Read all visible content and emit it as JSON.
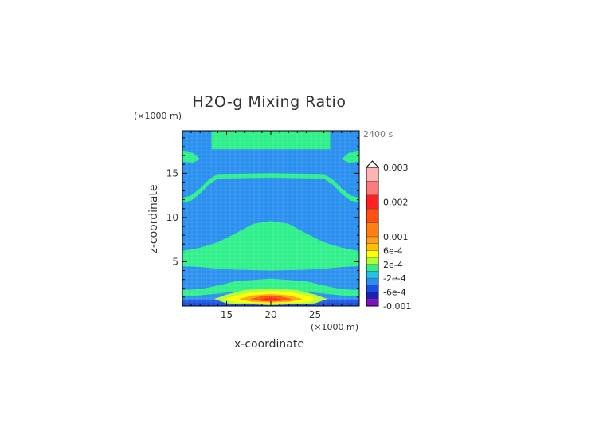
{
  "chart_data": {
    "type": "heatmap",
    "title": "H2O-g Mixing Ratio",
    "xlabel": "x-coordinate",
    "ylabel": "z-coordinate",
    "x_unit": "(×1000 m)",
    "y_unit": "(×1000 m)",
    "time_label": "2400 s",
    "xlim": [
      10,
      30
    ],
    "ylim": [
      0,
      19.8
    ],
    "x_ticks": [
      15,
      20,
      25
    ],
    "y_ticks": [
      5,
      10,
      15
    ],
    "colorbar": {
      "labels": [
        "0.003",
        "0.002",
        "0.001",
        "6e-4",
        "2e-4",
        "-2e-4",
        "-6e-4",
        "-0.001"
      ],
      "label_levels": [
        0.003,
        0.002,
        0.001,
        0.0006,
        0.0002,
        -0.0002,
        -0.0006,
        -0.001
      ],
      "extend_top": true,
      "segments": [
        {
          "from": 0.0026,
          "to": 0.003,
          "color": "#ffb3b3"
        },
        {
          "from": 0.0022,
          "to": 0.0026,
          "color": "#ff7b7b"
        },
        {
          "from": 0.0018,
          "to": 0.0022,
          "color": "#ff2020"
        },
        {
          "from": 0.0014,
          "to": 0.0018,
          "color": "#ff5010"
        },
        {
          "from": 0.001,
          "to": 0.0014,
          "color": "#ff8010"
        },
        {
          "from": 0.0008,
          "to": 0.001,
          "color": "#ffa010"
        },
        {
          "from": 0.0006,
          "to": 0.0008,
          "color": "#ffc000"
        },
        {
          "from": 0.0004,
          "to": 0.0006,
          "color": "#ffff00"
        },
        {
          "from": 0.0002,
          "to": 0.0004,
          "color": "#b0ff30"
        },
        {
          "from": 0.0,
          "to": 0.0002,
          "color": "#2ef08a"
        },
        {
          "from": -0.0002,
          "to": 0.0,
          "color": "#1ec4e6"
        },
        {
          "from": -0.0004,
          "to": -0.0002,
          "color": "#2a90f0"
        },
        {
          "from": -0.0006,
          "to": -0.0004,
          "color": "#1a50e0"
        },
        {
          "from": -0.0008,
          "to": -0.0006,
          "color": "#2020b0"
        },
        {
          "from": -0.001,
          "to": -0.0008,
          "color": "#8010c0"
        }
      ]
    },
    "field_regions": [
      {
        "name": "background",
        "level": -0.0001,
        "color": "#2a90f0"
      },
      {
        "name": "upper-band",
        "level": 0.0001,
        "color": "#2ef08a",
        "polygon": [
          [
            13.3,
            19.8
          ],
          [
            26.7,
            19.8
          ],
          [
            26.7,
            17.7
          ],
          [
            13.3,
            17.7
          ]
        ]
      },
      {
        "name": "upper-left-edge",
        "level": 0.0001,
        "color": "#2ef08a",
        "polygon": [
          [
            10,
            17.5
          ],
          [
            11.2,
            17.3
          ],
          [
            12,
            16.6
          ],
          [
            11.2,
            16.2
          ],
          [
            10,
            16.3
          ]
        ]
      },
      {
        "name": "upper-right-edge",
        "level": 0.0001,
        "color": "#2ef08a",
        "polygon": [
          [
            30,
            17.5
          ],
          [
            28.8,
            17.3
          ],
          [
            28,
            16.6
          ],
          [
            28.8,
            16.2
          ],
          [
            30,
            16.3
          ]
        ]
      },
      {
        "name": "tropopause-arc",
        "level": 0.0001,
        "color": "#2ef08a",
        "polygon": [
          [
            10,
            12.2
          ],
          [
            11,
            12.5
          ],
          [
            12,
            13.3
          ],
          [
            13,
            14.3
          ],
          [
            14,
            14.9
          ],
          [
            20,
            15.0
          ],
          [
            26,
            14.9
          ],
          [
            27,
            14.3
          ],
          [
            28,
            13.3
          ],
          [
            29,
            12.5
          ],
          [
            30,
            12.2
          ],
          [
            30,
            11.7
          ],
          [
            29,
            11.9
          ],
          [
            28,
            12.7
          ],
          [
            27,
            13.7
          ],
          [
            26,
            14.4
          ],
          [
            20,
            14.5
          ],
          [
            14,
            14.4
          ],
          [
            13,
            13.7
          ],
          [
            12,
            12.7
          ],
          [
            11,
            11.9
          ],
          [
            10,
            11.7
          ]
        ]
      },
      {
        "name": "middle-dome",
        "level": 0.0001,
        "color": "#2ef08a",
        "polygon": [
          [
            10,
            6.2
          ],
          [
            12,
            6.6
          ],
          [
            14,
            7.2
          ],
          [
            16,
            8.2
          ],
          [
            18,
            9.3
          ],
          [
            20,
            9.6
          ],
          [
            22,
            9.3
          ],
          [
            24,
            8.2
          ],
          [
            26,
            7.2
          ],
          [
            28,
            6.6
          ],
          [
            30,
            6.2
          ],
          [
            30,
            4.5
          ],
          [
            28,
            4.4
          ],
          [
            26,
            4.2
          ],
          [
            24,
            4.1
          ],
          [
            20,
            4.0
          ],
          [
            16,
            4.1
          ],
          [
            14,
            4.2
          ],
          [
            12,
            4.4
          ],
          [
            10,
            4.5
          ]
        ]
      },
      {
        "name": "near-surface-band",
        "level": 0.0001,
        "color": "#2ef08a",
        "polygon": [
          [
            10,
            1.8
          ],
          [
            12,
            1.9
          ],
          [
            14,
            2.3
          ],
          [
            16,
            2.8
          ],
          [
            20,
            3.1
          ],
          [
            24,
            2.8
          ],
          [
            26,
            2.3
          ],
          [
            28,
            1.9
          ],
          [
            30,
            1.8
          ],
          [
            30,
            1.0
          ],
          [
            10,
            1.0
          ]
        ]
      },
      {
        "name": "surface-layer",
        "level": -0.0003,
        "color": "#2a90f0",
        "polygon": [
          [
            10,
            1.1
          ],
          [
            12,
            1.2
          ],
          [
            14,
            1.4
          ],
          [
            16,
            1.6
          ],
          [
            20,
            1.7
          ],
          [
            24,
            1.6
          ],
          [
            26,
            1.4
          ],
          [
            28,
            1.2
          ],
          [
            30,
            1.1
          ],
          [
            30,
            0
          ],
          [
            10,
            0
          ]
        ]
      },
      {
        "name": "surface-deep-blue",
        "level": -0.0005,
        "color": "#1a50e0",
        "polygon": [
          [
            10,
            0.6
          ],
          [
            30,
            0.6
          ],
          [
            30,
            0
          ],
          [
            10,
            0
          ]
        ]
      },
      {
        "name": "anomaly-green",
        "level": 0.0003,
        "color": "#b0ff30",
        "polygon": [
          [
            13.6,
            0.8
          ],
          [
            15,
            1.3
          ],
          [
            17,
            1.8
          ],
          [
            20,
            2.0
          ],
          [
            23,
            1.8
          ],
          [
            25,
            1.3
          ],
          [
            26.4,
            0.8
          ],
          [
            25,
            0.3
          ],
          [
            20,
            0.1
          ],
          [
            15,
            0.3
          ]
        ]
      },
      {
        "name": "anomaly-yellow",
        "level": 0.0005,
        "color": "#ffff00",
        "polygon": [
          [
            14.6,
            0.8
          ],
          [
            16,
            1.2
          ],
          [
            18,
            1.6
          ],
          [
            20,
            1.7
          ],
          [
            22,
            1.6
          ],
          [
            24,
            1.2
          ],
          [
            25.4,
            0.8
          ],
          [
            24,
            0.4
          ],
          [
            20,
            0.3
          ],
          [
            16,
            0.4
          ]
        ]
      },
      {
        "name": "anomaly-orange",
        "level": 0.0009,
        "color": "#ffa010",
        "polygon": [
          [
            16.4,
            0.8
          ],
          [
            18,
            1.2
          ],
          [
            20,
            1.35
          ],
          [
            22,
            1.2
          ],
          [
            23.6,
            0.8
          ],
          [
            22,
            0.45
          ],
          [
            20,
            0.4
          ],
          [
            18,
            0.45
          ]
        ]
      },
      {
        "name": "anomaly-core",
        "level": 0.0016,
        "color": "#ff5010",
        "polygon": [
          [
            17.6,
            0.8
          ],
          [
            19,
            1.1
          ],
          [
            20,
            1.15
          ],
          [
            21,
            1.1
          ],
          [
            22.4,
            0.8
          ],
          [
            21,
            0.55
          ],
          [
            20,
            0.5
          ],
          [
            19,
            0.55
          ]
        ]
      },
      {
        "name": "anomaly-peak",
        "level": 0.002,
        "color": "#ff2020",
        "polygon": [
          [
            18.9,
            0.8
          ],
          [
            20,
            0.98
          ],
          [
            21.1,
            0.8
          ],
          [
            20,
            0.62
          ]
        ]
      }
    ]
  }
}
